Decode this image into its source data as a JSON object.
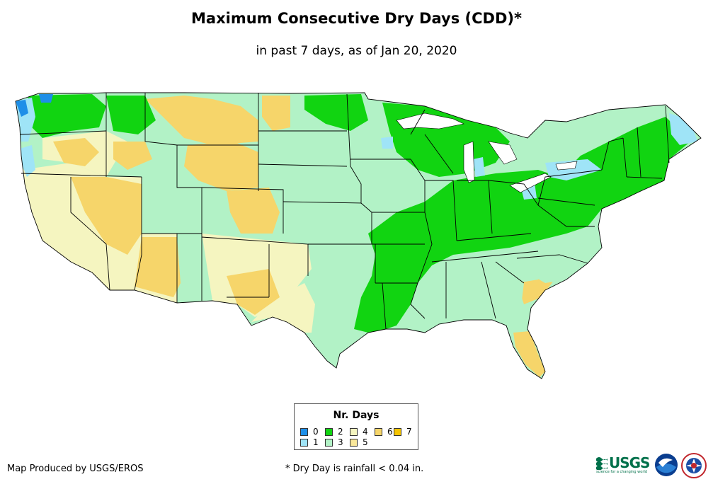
{
  "title": "Maximum Consecutive Dry Days (CDD)*",
  "subtitle": "in past 7 days, as of Jan 20, 2020",
  "legend": {
    "title": "Nr. Days",
    "items": [
      {
        "label": "0",
        "color": "#1e8fe8"
      },
      {
        "label": "1",
        "color": "#9fe4f7"
      },
      {
        "label": "2",
        "color": "#11d411"
      },
      {
        "label": "3",
        "color": "#b2f2c6"
      },
      {
        "label": "4",
        "color": "#f5f5c0"
      },
      {
        "label": "5",
        "color": "#f9e79a"
      },
      {
        "label": "6",
        "color": "#f6d56a"
      },
      {
        "label": "7",
        "color": "#f5c400"
      }
    ]
  },
  "credit": "Map Produced by USGS/EROS",
  "footnote": "* Dry Day is rainfall < 0.04 in.",
  "logos": {
    "usgs": "USGS",
    "usgs_tagline": "science for a changing world"
  },
  "colors": {
    "border": "#000000",
    "water": "#ffffff"
  }
}
